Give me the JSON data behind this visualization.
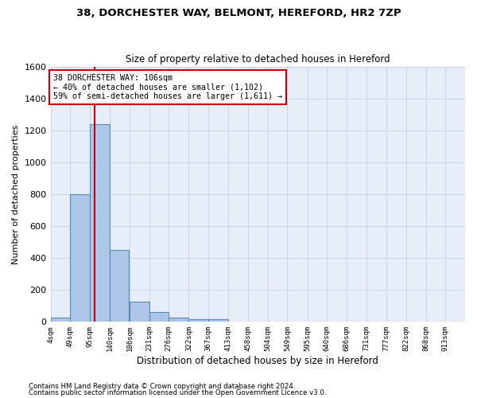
{
  "title1": "38, DORCHESTER WAY, BELMONT, HEREFORD, HR2 7ZP",
  "title2": "Size of property relative to detached houses in Hereford",
  "xlabel": "Distribution of detached houses by size in Hereford",
  "ylabel": "Number of detached properties",
  "footnote1": "Contains HM Land Registry data © Crown copyright and database right 2024.",
  "footnote2": "Contains public sector information licensed under the Open Government Licence v3.0.",
  "bin_labels": [
    "4sqm",
    "49sqm",
    "95sqm",
    "140sqm",
    "186sqm",
    "231sqm",
    "276sqm",
    "322sqm",
    "367sqm",
    "413sqm",
    "458sqm",
    "504sqm",
    "549sqm",
    "595sqm",
    "640sqm",
    "686sqm",
    "731sqm",
    "777sqm",
    "822sqm",
    "868sqm",
    "913sqm"
  ],
  "bin_edges": [
    4,
    49,
    95,
    140,
    186,
    231,
    276,
    322,
    367,
    413,
    458,
    504,
    549,
    595,
    640,
    686,
    731,
    777,
    822,
    868,
    913
  ],
  "bar_heights": [
    25,
    800,
    1240,
    450,
    125,
    60,
    25,
    15,
    15,
    0,
    0,
    0,
    0,
    0,
    0,
    0,
    0,
    0,
    0,
    0
  ],
  "bar_color": "#aec6e8",
  "bar_edge_color": "#5a8ab0",
  "grid_color": "#c8d4e8",
  "bg_color": "#e8eef8",
  "property_size": 106,
  "vline_color": "#cc0000",
  "annotation_line1": "38 DORCHESTER WAY: 106sqm",
  "annotation_line2": "← 40% of detached houses are smaller (1,102)",
  "annotation_line3": "59% of semi-detached houses are larger (1,611) →",
  "annotation_box_color": "#ffffff",
  "annotation_border_color": "#cc0000",
  "ylim": [
    0,
    1600
  ],
  "yticks": [
    0,
    200,
    400,
    600,
    800,
    1000,
    1200,
    1400,
    1600
  ]
}
